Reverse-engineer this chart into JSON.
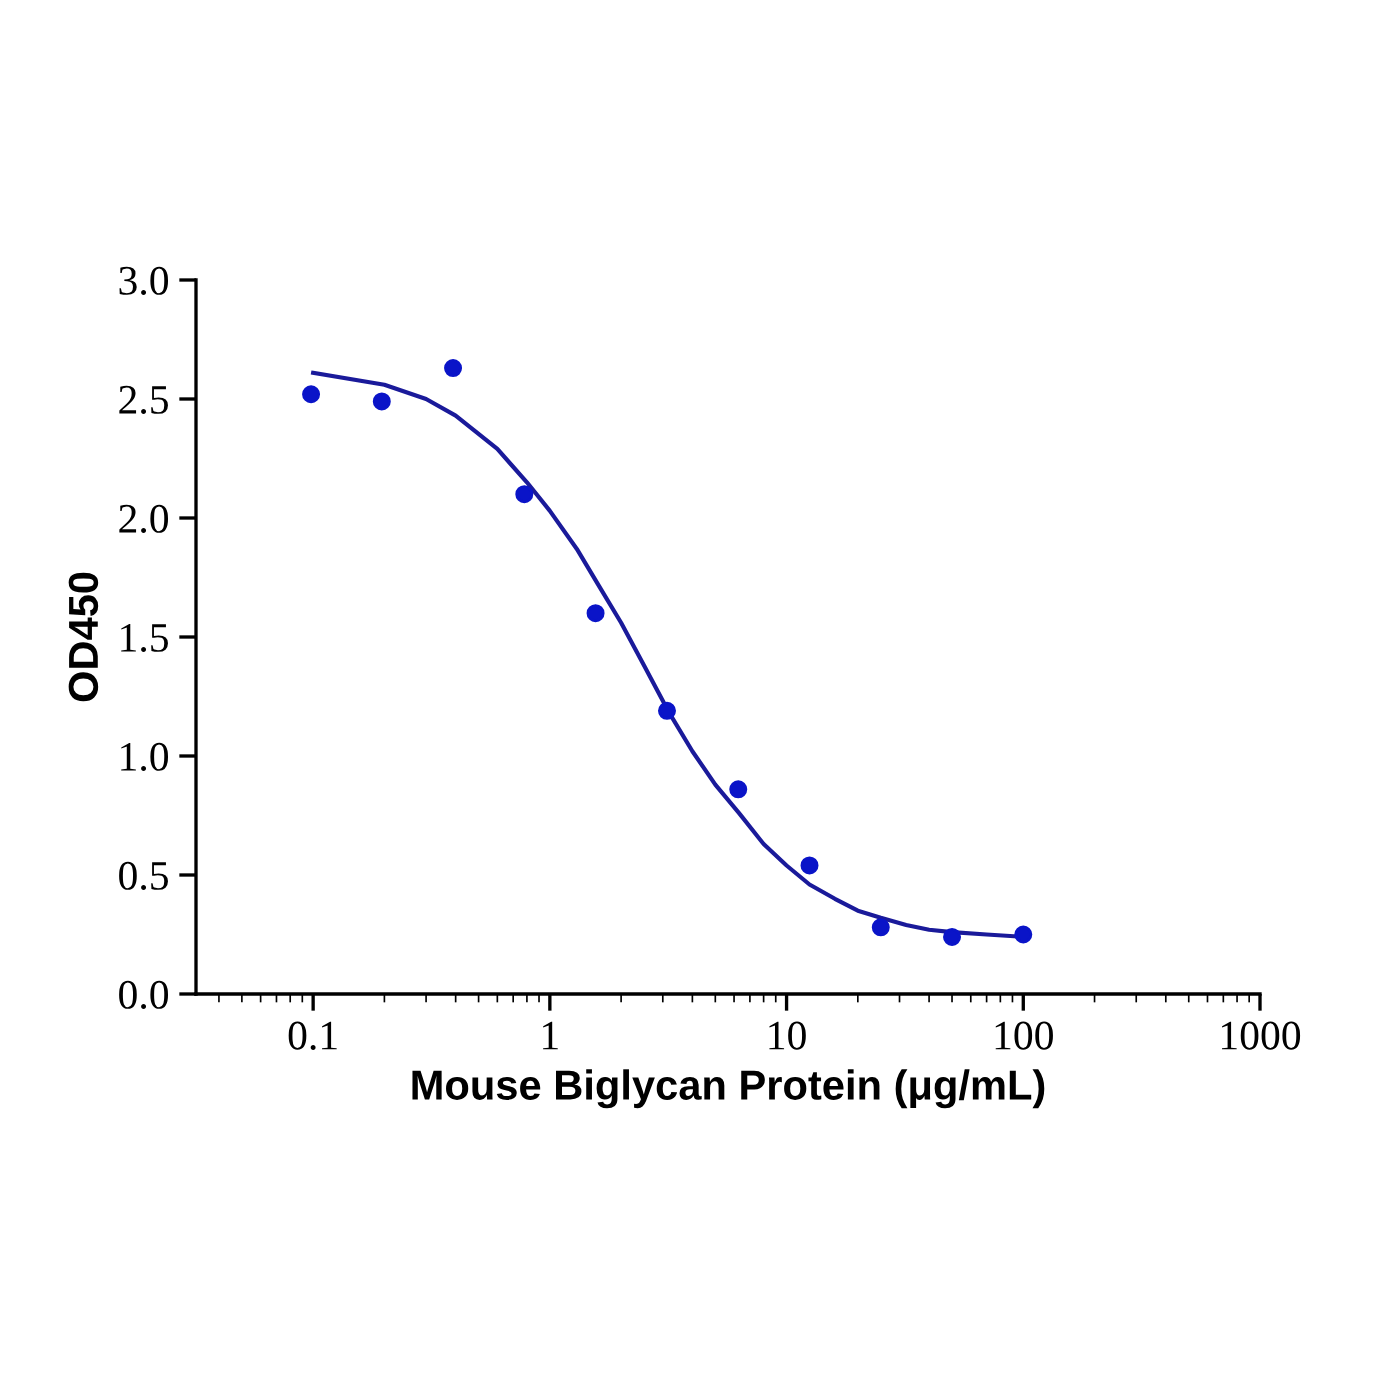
{
  "chart_data": {
    "type": "scatter",
    "xlabel": "Mouse Biglycan Protein (μg/mL)",
    "ylabel": "OD450",
    "log": "x",
    "xlim": [
      0.032,
      1000
    ],
    "xticks": [
      0.1,
      1,
      10,
      100,
      1000
    ],
    "ylim": [
      0,
      3.0
    ],
    "yticks": [
      {
        "value": 0,
        "label": "0.0"
      },
      {
        "value": 0.5,
        "label": "0.5"
      },
      {
        "value": 1.0,
        "label": "1.0"
      },
      {
        "value": 1.5,
        "label": "1.5"
      },
      {
        "value": 2.0,
        "label": "2.0"
      },
      {
        "value": 2.5,
        "label": "2.5"
      },
      {
        "value": 3.0,
        "label": "3.0"
      }
    ],
    "grid": false,
    "legend": false,
    "series": [
      {
        "marker": "circle",
        "color": "#0a14c8",
        "x": [
          0.098,
          0.195,
          0.39,
          0.78,
          1.56,
          3.125,
          6.25,
          12.5,
          25,
          50,
          100
        ],
        "values": [
          2.52,
          2.49,
          2.63,
          2.1,
          1.6,
          1.19,
          0.86,
          0.54,
          0.28,
          0.24,
          0.25
        ]
      },
      {
        "type": "line",
        "color": "#1a1a9a",
        "x": [
          0.1,
          0.2,
          0.3,
          0.4,
          0.6,
          0.8,
          1.0,
          1.3,
          1.6,
          2.0,
          2.5,
          3.2,
          4.0,
          5.0,
          6.3,
          8.0,
          10,
          12.5,
          16,
          20,
          25,
          32,
          40,
          50,
          70,
          100
        ],
        "values": [
          2.61,
          2.56,
          2.5,
          2.43,
          2.29,
          2.15,
          2.03,
          1.87,
          1.72,
          1.56,
          1.38,
          1.18,
          1.02,
          0.88,
          0.76,
          0.63,
          0.54,
          0.46,
          0.4,
          0.35,
          0.32,
          0.29,
          0.27,
          0.26,
          0.25,
          0.24
        ]
      }
    ]
  }
}
